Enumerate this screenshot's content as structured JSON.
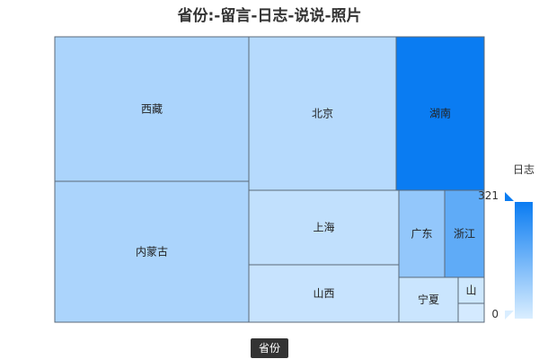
{
  "chart_data": {
    "type": "treemap",
    "title": "省份:-留言-日志-说说-照片",
    "items": [
      {
        "name": "西藏",
        "value": 72
      },
      {
        "name": "内蒙古",
        "value": 72
      },
      {
        "name": "北京",
        "value": 56
      },
      {
        "name": "湖南",
        "value": 321
      },
      {
        "name": "上海",
        "value": 39
      },
      {
        "name": "山西",
        "value": 30
      },
      {
        "name": "广东",
        "value": 110
      },
      {
        "name": "浙江",
        "value": 190
      },
      {
        "name": "宁夏",
        "value": 25
      },
      {
        "name": "山",
        "value": 18
      },
      {
        "name": "",
        "value": 10
      }
    ],
    "visual_map": {
      "label": "日志",
      "min": 0,
      "max": 321,
      "min_label": "0",
      "max_label": "321",
      "colors": [
        "#daeeff",
        "#0a7cf2"
      ]
    },
    "breadcrumb": "省份"
  }
}
